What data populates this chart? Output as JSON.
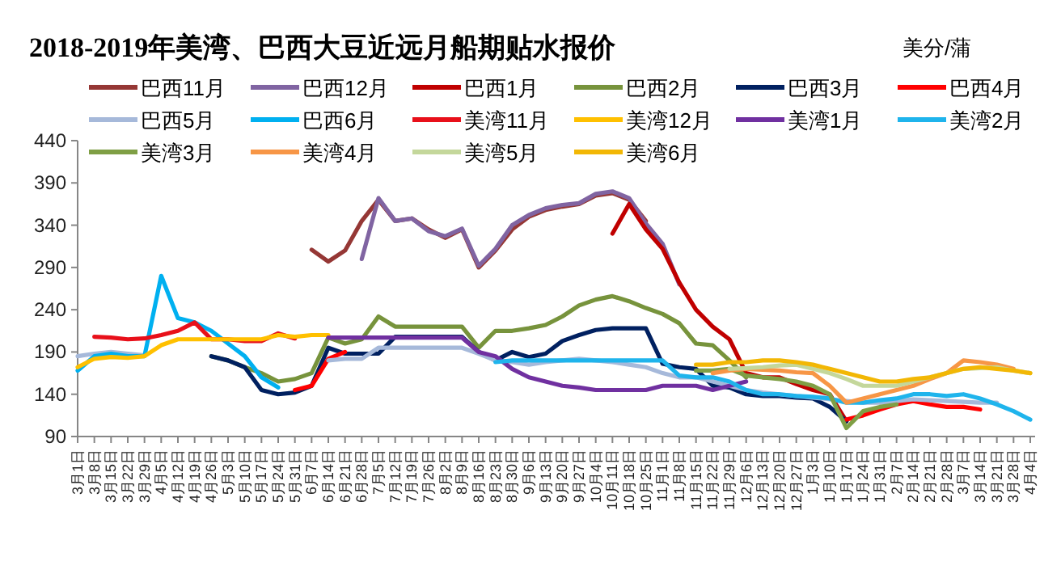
{
  "chart_data": {
    "type": "line",
    "title": "2018-2019年美湾、巴西大豆近远月船期贴水报价",
    "ylabel": "美分/蒲",
    "categories": [
      "3月1日",
      "3月8日",
      "3月15日",
      "3月22日",
      "3月29日",
      "4月5日",
      "4月12日",
      "4月19日",
      "4月26日",
      "5月3日",
      "5月10日",
      "5月17日",
      "5月24日",
      "5月31日",
      "6月7日",
      "6月14日",
      "6月21日",
      "6月28日",
      "7月5日",
      "7月12日",
      "7月19日",
      "7月26日",
      "8月2日",
      "8月9日",
      "8月16日",
      "8月23日",
      "8月30日",
      "9月6日",
      "9月13日",
      "9月20日",
      "9月27日",
      "10月4日",
      "10月11日",
      "10月18日",
      "10月25日",
      "11月1日",
      "11月8日",
      "11月15日",
      "11月22日",
      "11月29日",
      "12月6日",
      "12月13日",
      "12月20日",
      "12月27日",
      "1月3日",
      "1月10日",
      "1月17日",
      "1月24日",
      "1月31日",
      "2月7日",
      "2月14日",
      "2月21日",
      "2月28日",
      "3月7日",
      "3月14日",
      "3月21日",
      "3月28日",
      "4月4日"
    ],
    "ylim": [
      90,
      440
    ],
    "yticks": [
      90,
      140,
      190,
      240,
      290,
      340,
      390,
      440
    ],
    "grid": false,
    "legend": "top",
    "series": [
      {
        "name": "巴西11月",
        "color": "#953735",
        "values": [
          null,
          null,
          null,
          null,
          null,
          null,
          null,
          null,
          null,
          null,
          null,
          null,
          null,
          null,
          311,
          297,
          310,
          345,
          370,
          345,
          348,
          335,
          325,
          335,
          290,
          310,
          335,
          350,
          358,
          362,
          365,
          375,
          378,
          370,
          345,
          null,
          null,
          null,
          null,
          null,
          null,
          null,
          null,
          null,
          null,
          null,
          null,
          null,
          null,
          null,
          null,
          null,
          null,
          null,
          null,
          null,
          null,
          null
        ]
      },
      {
        "name": "巴西12月",
        "color": "#8064a2",
        "values": [
          null,
          null,
          null,
          null,
          null,
          null,
          null,
          null,
          null,
          null,
          null,
          null,
          null,
          null,
          null,
          null,
          null,
          300,
          372,
          345,
          348,
          333,
          327,
          336,
          292,
          312,
          340,
          352,
          360,
          364,
          366,
          377,
          380,
          372,
          342,
          318,
          270,
          null,
          null,
          null,
          null,
          null,
          null,
          null,
          null,
          null,
          null,
          null,
          null,
          null,
          null,
          null,
          null,
          null,
          null,
          null,
          null,
          null
        ]
      },
      {
        "name": "巴西1月",
        "color": "#c00000",
        "values": [
          null,
          null,
          null,
          null,
          null,
          null,
          null,
          null,
          null,
          null,
          null,
          null,
          null,
          null,
          null,
          null,
          null,
          null,
          null,
          null,
          null,
          null,
          null,
          null,
          null,
          null,
          null,
          null,
          null,
          null,
          null,
          null,
          330,
          365,
          335,
          312,
          272,
          240,
          220,
          205,
          165,
          160,
          160,
          152,
          145,
          140,
          108,
          null,
          null,
          null,
          null,
          null,
          null,
          null,
          null,
          null,
          null,
          null
        ]
      },
      {
        "name": "巴西2月",
        "color": "#77933c",
        "values": [
          null,
          null,
          null,
          null,
          null,
          null,
          null,
          null,
          185,
          180,
          172,
          165,
          155,
          158,
          165,
          207,
          200,
          205,
          232,
          220,
          220,
          220,
          220,
          220,
          195,
          215,
          215,
          218,
          222,
          232,
          245,
          252,
          256,
          250,
          242,
          235,
          224,
          200,
          198,
          180,
          160,
          null,
          null,
          null,
          null,
          null,
          null,
          null,
          null,
          null,
          null,
          null,
          null,
          null,
          null,
          null,
          null,
          null
        ]
      },
      {
        "name": "巴西3月",
        "color": "#002060",
        "values": [
          null,
          null,
          null,
          null,
          null,
          null,
          null,
          null,
          185,
          180,
          172,
          145,
          140,
          142,
          150,
          195,
          188,
          188,
          188,
          208,
          208,
          208,
          208,
          208,
          190,
          180,
          190,
          184,
          188,
          203,
          210,
          216,
          218,
          218,
          218,
          176,
          172,
          170,
          150,
          148,
          140,
          138,
          138,
          136,
          135,
          125,
          108,
          null,
          null,
          null,
          null,
          null,
          null,
          null,
          null,
          null,
          null,
          null
        ]
      },
      {
        "name": "巴西4月",
        "color": "#ff0000",
        "values": [
          null,
          null,
          null,
          null,
          null,
          null,
          null,
          null,
          null,
          null,
          null,
          null,
          null,
          145,
          150,
          182,
          190,
          null,
          null,
          null,
          null,
          null,
          null,
          null,
          null,
          null,
          null,
          null,
          null,
          null,
          null,
          null,
          null,
          null,
          null,
          null,
          null,
          null,
          null,
          null,
          null,
          null,
          null,
          null,
          null,
          null,
          110,
          115,
          122,
          128,
          132,
          128,
          125,
          125,
          122,
          null,
          null,
          null
        ]
      },
      {
        "name": "巴西5月",
        "color": "#a6b9da",
        "values": [
          185,
          188,
          190,
          188,
          186,
          null,
          null,
          null,
          null,
          null,
          null,
          null,
          null,
          null,
          null,
          180,
          182,
          182,
          195,
          195,
          195,
          195,
          195,
          195,
          188,
          180,
          178,
          175,
          178,
          180,
          182,
          180,
          178,
          175,
          172,
          165,
          160,
          160,
          155,
          150,
          145,
          142,
          140,
          138,
          136,
          134,
          132,
          130,
          130,
          132,
          134,
          133,
          132,
          131,
          130,
          130,
          null,
          null
        ]
      },
      {
        "name": "巴西6月",
        "color": "#00b0f0",
        "values": [
          168,
          185,
          188,
          185,
          185,
          280,
          230,
          225,
          215,
          200,
          185,
          160,
          148,
          null,
          null,
          null,
          null,
          null,
          null,
          null,
          null,
          null,
          null,
          null,
          null,
          null,
          null,
          null,
          null,
          null,
          null,
          null,
          null,
          null,
          null,
          null,
          null,
          null,
          null,
          null,
          null,
          null,
          null,
          null,
          null,
          null,
          null,
          null,
          null,
          null,
          null,
          null,
          null,
          null,
          null,
          null,
          null,
          null
        ]
      },
      {
        "name": "美湾11月",
        "color": "#e8101a",
        "values": [
          null,
          208,
          207,
          205,
          206,
          210,
          215,
          225,
          205,
          205,
          203,
          203,
          212,
          206,
          null,
          null,
          null,
          null,
          null,
          null,
          null,
          null,
          null,
          null,
          null,
          null,
          null,
          null,
          null,
          null,
          null,
          null,
          null,
          null,
          null,
          null,
          null,
          null,
          null,
          null,
          null,
          null,
          null,
          null,
          null,
          null,
          null,
          null,
          null,
          null,
          null,
          null,
          null,
          null,
          null,
          null,
          null,
          null
        ]
      },
      {
        "name": "美湾12月",
        "color": "#ffc000",
        "values": [
          172,
          182,
          184,
          183,
          185,
          198,
          205,
          205,
          205,
          205,
          205,
          205,
          210,
          208,
          210,
          210,
          null,
          null,
          null,
          null,
          null,
          null,
          null,
          null,
          null,
          null,
          null,
          null,
          null,
          null,
          null,
          null,
          null,
          null,
          null,
          null,
          null,
          null,
          null,
          null,
          null,
          null,
          null,
          null,
          null,
          null,
          null,
          null,
          null,
          null,
          null,
          null,
          null,
          null,
          null,
          null,
          null,
          null
        ]
      },
      {
        "name": "美湾1月",
        "color": "#7030a0",
        "values": [
          null,
          null,
          null,
          null,
          null,
          null,
          null,
          null,
          null,
          null,
          null,
          null,
          null,
          null,
          null,
          207,
          207,
          207,
          207,
          207,
          207,
          207,
          207,
          207,
          190,
          185,
          170,
          160,
          155,
          150,
          148,
          145,
          145,
          145,
          145,
          150,
          150,
          150,
          145,
          150,
          155,
          null,
          null,
          null,
          null,
          null,
          null,
          null,
          null,
          null,
          null,
          null,
          null,
          null,
          null,
          null,
          null,
          null
        ]
      },
      {
        "name": "美湾2月",
        "color": "#1fb4ec",
        "values": [
          null,
          null,
          null,
          null,
          null,
          null,
          null,
          null,
          null,
          null,
          null,
          null,
          null,
          null,
          null,
          null,
          null,
          null,
          null,
          null,
          null,
          null,
          null,
          null,
          null,
          178,
          180,
          180,
          180,
          180,
          180,
          180,
          180,
          180,
          180,
          180,
          162,
          160,
          160,
          155,
          145,
          140,
          140,
          138,
          137,
          135,
          130,
          130,
          133,
          135,
          140,
          140,
          138,
          140,
          135,
          128,
          120,
          110
        ]
      },
      {
        "name": "美湾3月",
        "color": "#7f9f45",
        "values": [
          null,
          null,
          null,
          null,
          null,
          null,
          null,
          null,
          null,
          null,
          null,
          null,
          null,
          null,
          null,
          null,
          null,
          null,
          null,
          null,
          null,
          null,
          null,
          null,
          null,
          null,
          null,
          null,
          null,
          null,
          null,
          null,
          null,
          null,
          null,
          null,
          null,
          168,
          168,
          170,
          162,
          160,
          158,
          155,
          150,
          140,
          100,
          120,
          125,
          128,
          null,
          null,
          null,
          null,
          null,
          null,
          null,
          null
        ]
      },
      {
        "name": "美湾4月",
        "color": "#f79646",
        "values": [
          null,
          null,
          null,
          null,
          null,
          null,
          null,
          null,
          null,
          null,
          null,
          null,
          null,
          null,
          null,
          null,
          null,
          null,
          null,
          null,
          null,
          null,
          null,
          null,
          null,
          null,
          null,
          null,
          null,
          null,
          null,
          null,
          null,
          null,
          null,
          null,
          null,
          null,
          165,
          168,
          170,
          169,
          168,
          166,
          165,
          150,
          130,
          135,
          140,
          145,
          150,
          158,
          165,
          180,
          178,
          175,
          170,
          null
        ]
      },
      {
        "name": "美湾5月",
        "color": "#c4d79b",
        "values": [
          null,
          null,
          null,
          null,
          null,
          null,
          null,
          null,
          null,
          null,
          null,
          null,
          null,
          null,
          null,
          null,
          null,
          null,
          null,
          null,
          null,
          null,
          null,
          null,
          null,
          null,
          null,
          null,
          null,
          null,
          null,
          null,
          null,
          null,
          null,
          null,
          null,
          null,
          null,
          170,
          171,
          172,
          174,
          175,
          170,
          165,
          158,
          150,
          150,
          150,
          155,
          160,
          165,
          170,
          171,
          172,
          168,
          165
        ]
      },
      {
        "name": "美湾6月",
        "color": "#f2b705",
        "values": [
          null,
          null,
          null,
          null,
          null,
          null,
          null,
          null,
          null,
          null,
          null,
          null,
          null,
          null,
          null,
          null,
          null,
          null,
          null,
          null,
          null,
          null,
          null,
          null,
          null,
          null,
          null,
          null,
          null,
          null,
          null,
          null,
          null,
          null,
          null,
          null,
          null,
          175,
          175,
          178,
          178,
          180,
          180,
          178,
          175,
          170,
          165,
          160,
          155,
          155,
          158,
          160,
          165,
          170,
          172,
          170,
          168,
          165
        ]
      }
    ]
  }
}
